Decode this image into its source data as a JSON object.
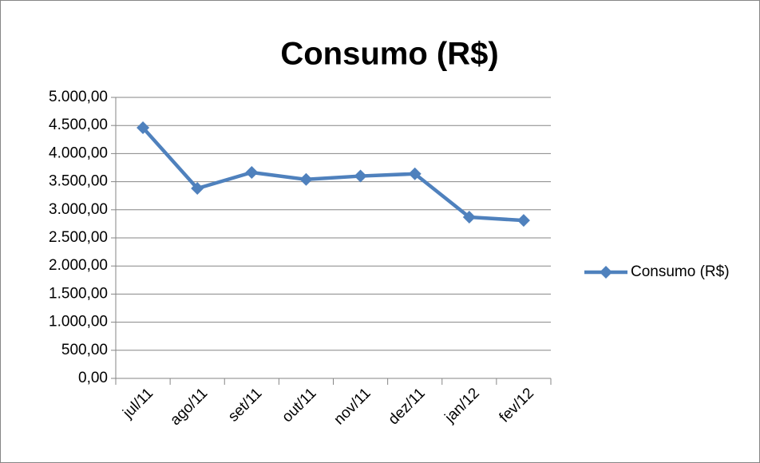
{
  "chart_data": {
    "type": "line",
    "title": "Consumo (R$)",
    "categories": [
      "jul/11",
      "ago/11",
      "set/11",
      "out/11",
      "nov/11",
      "dez/11",
      "jan/12",
      "fev/12"
    ],
    "series": [
      {
        "name": "Consumo (R$)",
        "color": "#4f81bd",
        "values": [
          4460,
          3380,
          3665,
          3540,
          3600,
          3640,
          2870,
          2810
        ]
      }
    ],
    "ylim": [
      0,
      5000
    ],
    "yticks": [
      {
        "value": 0,
        "label": "0,00"
      },
      {
        "value": 500,
        "label": "500,00"
      },
      {
        "value": 1000,
        "label": "1.000,00"
      },
      {
        "value": 1500,
        "label": "1.500,00"
      },
      {
        "value": 2000,
        "label": "2.000,00"
      },
      {
        "value": 2500,
        "label": "2.500,00"
      },
      {
        "value": 3000,
        "label": "3.000,00"
      },
      {
        "value": 3500,
        "label": "3.500,00"
      },
      {
        "value": 4000,
        "label": "4.000,00"
      },
      {
        "value": 4500,
        "label": "4.500,00"
      },
      {
        "value": 5000,
        "label": "5.000,00"
      }
    ],
    "grid": true,
    "legend": "right"
  }
}
